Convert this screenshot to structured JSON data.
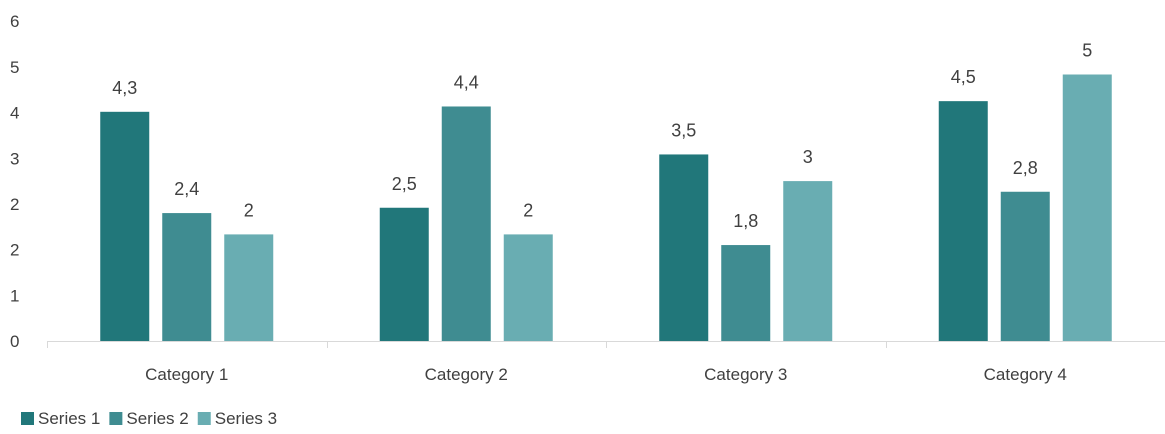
{
  "chart_data": {
    "type": "bar",
    "categories": [
      "Category 1",
      "Category 2",
      "Category 3",
      "Category 4"
    ],
    "series": [
      {
        "name": "Series 1",
        "values": [
          4.3,
          2.5,
          3.5,
          4.5
        ],
        "labels": [
          "4,3",
          "2,5",
          "3,5",
          "4,5"
        ],
        "color": "#21777a"
      },
      {
        "name": "Series 2",
        "values": [
          2.4,
          4.4,
          1.8,
          2.8
        ],
        "labels": [
          "2,4",
          "4,4",
          "1,8",
          "2,8"
        ],
        "color": "#3f8c91"
      },
      {
        "name": "Series 3",
        "values": [
          2,
          2,
          3,
          5
        ],
        "labels": [
          "2",
          "2",
          "3",
          "5"
        ],
        "color": "#69adb2"
      }
    ],
    "y_ticks": [
      "0",
      "1",
      "2",
      "2",
      "3",
      "4",
      "5",
      "6"
    ],
    "ylim": [
      0,
      6
    ],
    "grid": false,
    "legend": "bottom-left",
    "title": "",
    "xlabel": "",
    "ylabel": ""
  }
}
